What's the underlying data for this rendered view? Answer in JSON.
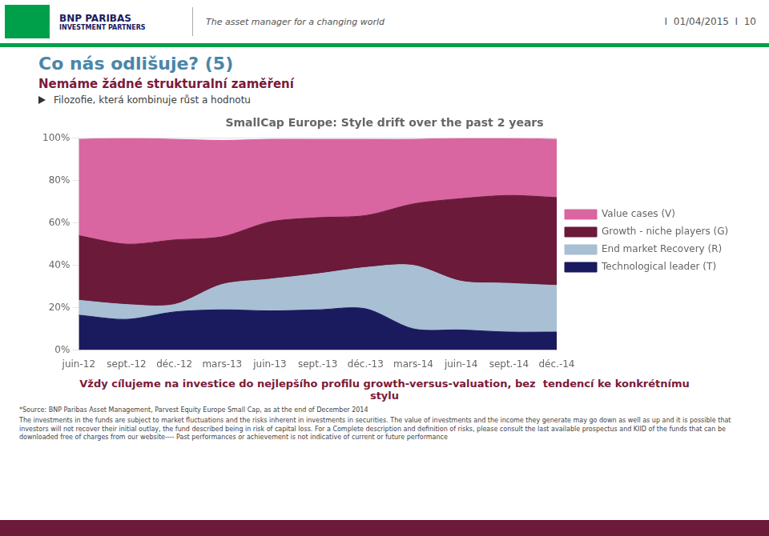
{
  "chart_data": {
    "type": "area",
    "title": "SmallCap Europe: Style drift over the past 2 years",
    "annotations": [
      "BNP PARIBAS",
      "INVESTMENT PARTNERS",
      "The asset manager for a changing world",
      "I  01/04/2015  I  10",
      "Co nás odlišuje? (5)",
      "Nemáme žádné strukturalní zaměření",
      "Filozofie, která kombinuje růst a hodnotu",
      "Vždy cílujeme na investice do nejlepšího profilu growth-versus-valuation, bez  tendencí ke konkrétnímu",
      "stylu",
      "*Source: BNP Paribas Asset Management, Parvest Equity Europe Small Cap, as at the end of December 2014",
      "The investments in the funds are subject to market fluctuations and the risks inherent in investments in securities. The value of investments and the income they generate may go down as well as up and it is possible that investors will not recover their initial outlay, the fund described being in risk of capital loss. For a Complete description and definition of risks, please consult the last available prospectus and KIID of the funds that can be downloaded free of charges from our website---- Past performances or achievement is not indicative of current or future performance"
    ],
    "categories": [
      "juin-12",
      "sept.-12",
      "déc.-12",
      "mars-13",
      "juin-13",
      "sept.-13",
      "déc.-13",
      "mars-14",
      "juin-14",
      "sept.-14",
      "déc.-14"
    ],
    "series": [
      {
        "name": "Technological leader (T)",
        "color": "#1a1a5e",
        "values": [
          0.165,
          0.145,
          0.18,
          0.19,
          0.185,
          0.19,
          0.195,
          0.1,
          0.095,
          0.085,
          0.085
        ]
      },
      {
        "name": "End market Recovery (R)",
        "color": "#a8bfd4",
        "values": [
          0.07,
          0.07,
          0.035,
          0.12,
          0.15,
          0.17,
          0.195,
          0.3,
          0.23,
          0.23,
          0.22
        ]
      },
      {
        "name": "Growth - niche players (G)",
        "color": "#6b1a3a",
        "values": [
          0.305,
          0.285,
          0.305,
          0.225,
          0.27,
          0.265,
          0.245,
          0.29,
          0.39,
          0.415,
          0.415
        ]
      },
      {
        "name": "Value cases (V)",
        "color": "#d966a0",
        "values": [
          0.455,
          0.5,
          0.475,
          0.455,
          0.39,
          0.37,
          0.36,
          0.305,
          0.285,
          0.27,
          0.275
        ]
      }
    ],
    "stacked": true,
    "ylim": [
      0,
      1.0
    ],
    "yticks": [
      {
        "value": 0,
        "label": "0%"
      },
      {
        "value": 0.2,
        "label": "20%"
      },
      {
        "value": 0.4,
        "label": "40%"
      },
      {
        "value": 0.6,
        "label": "60%"
      },
      {
        "value": 0.8,
        "label": "80%"
      },
      {
        "value": 1.0,
        "label": "100%"
      }
    ],
    "grid": true,
    "legend": "right"
  }
}
